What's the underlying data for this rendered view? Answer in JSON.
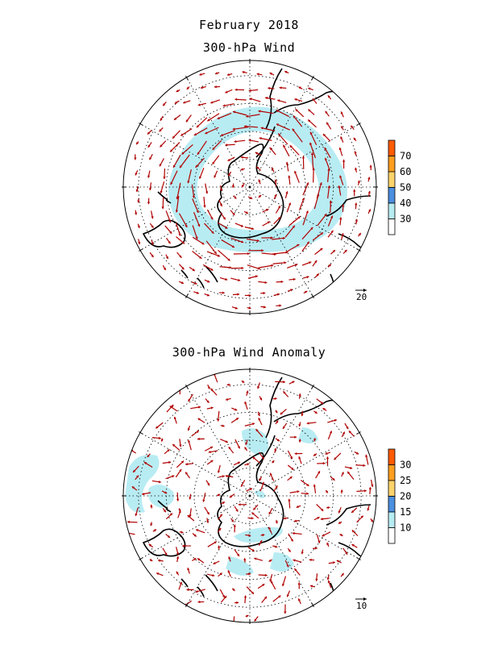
{
  "figure": {
    "title_line1": "February 2018",
    "title_top": "300-hPa Wind",
    "title_bottom": "300-hPa Wind Anomaly"
  },
  "panels": [
    {
      "id": "wind",
      "colorbar_labels": [
        "70",
        "60",
        "50",
        "40",
        "30"
      ],
      "colorbar_colors": [
        "#ff5a00",
        "#ff9e1e",
        "#ffd36a",
        "#4b8fe0",
        "#b8ecf3",
        "#ffffff"
      ],
      "reference_vector_label": "20"
    },
    {
      "id": "anomaly",
      "colorbar_labels": [
        "30",
        "25",
        "20",
        "15",
        "10"
      ],
      "colorbar_colors": [
        "#ff5a00",
        "#ff9e1e",
        "#ffd36a",
        "#4b8fe0",
        "#b8ecf3",
        "#ffffff"
      ],
      "reference_vector_label": "10"
    }
  ],
  "style": {
    "arrow_color": "#b00000",
    "shading_color": "#b8ecf3",
    "grid_color": "#000000",
    "coast_color": "#000000"
  }
}
